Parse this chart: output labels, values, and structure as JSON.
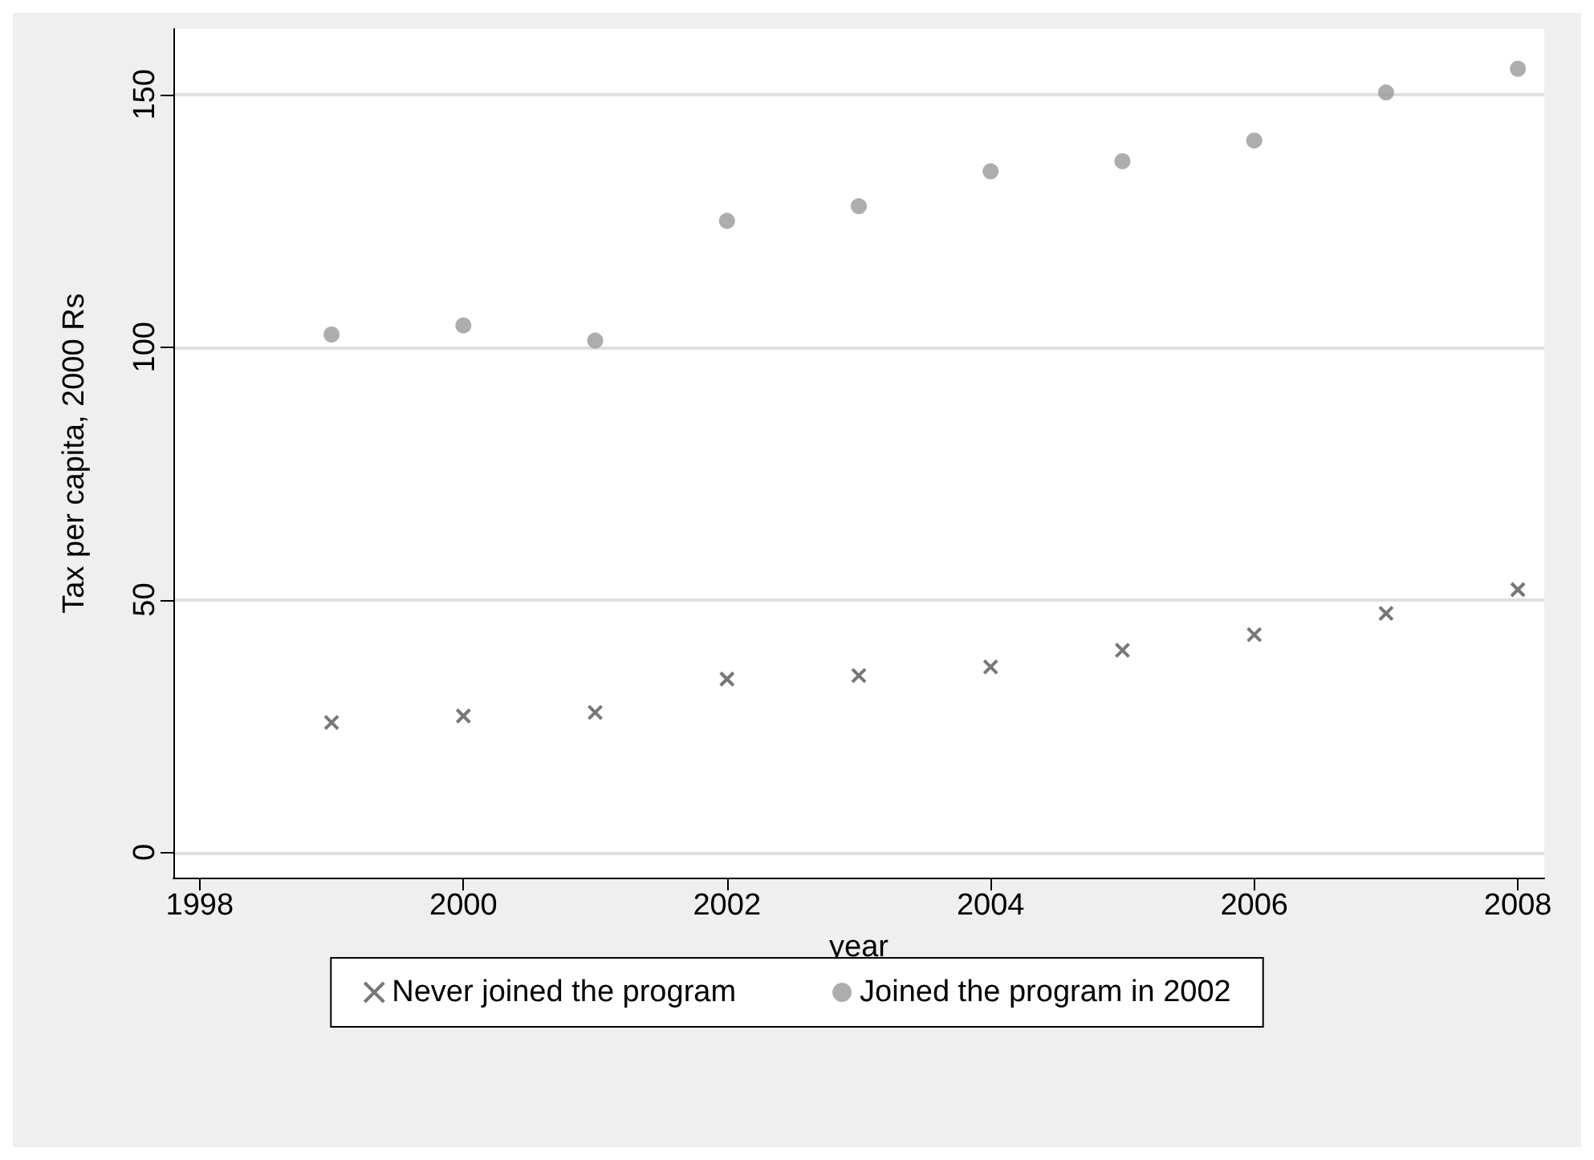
{
  "chart_data": {
    "type": "scatter",
    "xlabel": "year",
    "ylabel": "Tax per capita, 2000 Rs",
    "x": [
      1999,
      2000,
      2001,
      2002,
      2003,
      2004,
      2005,
      2006,
      2007,
      2008
    ],
    "series": [
      {
        "name": "Never joined the program",
        "color": "#555555",
        "marker": "cross",
        "values": [
          25.7,
          27.0,
          27.7,
          34.3,
          35.0,
          36.7,
          40.0,
          43.1,
          47.3,
          52.0
        ]
      },
      {
        "name": "Joined the program in 2002",
        "color": "#999999",
        "marker": "circle",
        "values": [
          102.5,
          104.3,
          101.3,
          125.0,
          127.9,
          134.8,
          136.8,
          140.9,
          150.4,
          155.1
        ]
      }
    ],
    "xlim": [
      1997.8,
      2008.2
    ],
    "xticks": [
      1998,
      2000,
      2002,
      2004,
      2006,
      2008
    ],
    "ylim": [
      -5,
      163
    ],
    "yticks": [
      0,
      50,
      100,
      150
    ],
    "grid": "y",
    "legend": "bottom"
  }
}
